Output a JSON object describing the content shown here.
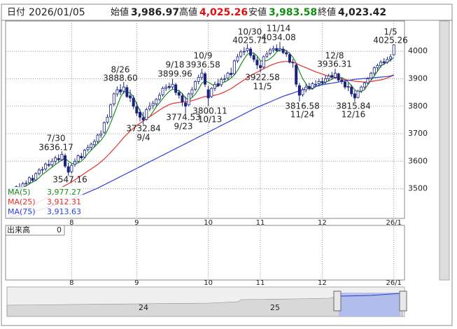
{
  "header": {
    "date_label": "日付",
    "date": "2026/01/05",
    "open_label": "始値",
    "open": "3,986.97",
    "high_label": "高値",
    "high": "4,025.26",
    "low_label": "安値",
    "low": "3,983.58",
    "close_label": "終値",
    "close": "4,023.42"
  },
  "chart_data": {
    "type": "candlestick",
    "up_color": "#ffffff",
    "down_color": "#1a237e",
    "edge_color": "#1a237e",
    "ylim": [
      3392,
      4110
    ],
    "yticks": [
      3500,
      3600,
      3700,
      3800,
      3900,
      4000
    ],
    "grid": true,
    "categories": [
      null,
      null,
      null,
      null,
      null,
      null,
      null,
      null,
      null,
      null,
      null,
      null,
      null,
      null,
      null,
      null,
      null,
      null,
      null,
      "8",
      null,
      null,
      null,
      null,
      null,
      null,
      null,
      null,
      null,
      null,
      null,
      null,
      null,
      null,
      null,
      null,
      null,
      null,
      null,
      "9",
      null,
      null,
      null,
      null,
      null,
      null,
      null,
      null,
      null,
      null,
      null,
      null,
      null,
      null,
      null,
      null,
      null,
      null,
      null,
      null,
      null,
      "10",
      null,
      null,
      null,
      null,
      null,
      null,
      null,
      null,
      null,
      null,
      null,
      null,
      null,
      null,
      null,
      "11",
      null,
      null,
      null,
      null,
      null,
      null,
      null,
      null,
      null,
      null,
      null,
      null,
      null,
      null,
      null,
      null,
      null,
      null,
      "12",
      null,
      null,
      null,
      null,
      null,
      null,
      null,
      null,
      null,
      null,
      null,
      null,
      null,
      null,
      null,
      null,
      null,
      null,
      null,
      null,
      null,
      "26/1"
    ],
    "ohlc": [
      [
        3480,
        3500,
        3470,
        3490
      ],
      [
        3492,
        3505,
        3485,
        3500
      ],
      [
        3498,
        3512,
        3490,
        3508
      ],
      [
        3506,
        3520,
        3498,
        3503
      ],
      [
        3505,
        3525,
        3500,
        3518
      ],
      [
        3518,
        3530,
        3510,
        3520
      ],
      [
        3522,
        3545,
        3515,
        3540
      ],
      [
        3538,
        3550,
        3525,
        3530
      ],
      [
        3532,
        3560,
        3528,
        3555
      ],
      [
        3555,
        3575,
        3548,
        3568
      ],
      [
        3568,
        3580,
        3555,
        3570
      ],
      [
        3572,
        3595,
        3565,
        3590
      ],
      [
        3588,
        3605,
        3578,
        3585
      ],
      [
        3587,
        3610,
        3580,
        3600
      ],
      [
        3600,
        3620,
        3590,
        3612
      ],
      [
        3610,
        3625,
        3598,
        3605
      ],
      [
        3606,
        3636.17,
        3600,
        3625
      ],
      [
        3620,
        3628,
        3575,
        3582
      ],
      [
        3580,
        3595,
        3547.16,
        3560
      ],
      [
        3562,
        3590,
        3555,
        3585
      ],
      [
        3588,
        3610,
        3580,
        3600
      ],
      [
        3600,
        3625,
        3595,
        3620
      ],
      [
        3618,
        3630,
        3605,
        3612
      ],
      [
        3615,
        3645,
        3610,
        3640
      ],
      [
        3642,
        3660,
        3635,
        3650
      ],
      [
        3650,
        3668,
        3640,
        3662
      ],
      [
        3660,
        3680,
        3652,
        3672
      ],
      [
        3672,
        3700,
        3665,
        3695
      ],
      [
        3695,
        3712,
        3685,
        3700
      ],
      [
        3705,
        3745,
        3700,
        3740
      ],
      [
        3742,
        3770,
        3735,
        3760
      ],
      [
        3762,
        3810,
        3755,
        3805
      ],
      [
        3808,
        3850,
        3800,
        3845
      ],
      [
        3845,
        3872,
        3835,
        3860
      ],
      [
        3860,
        3880,
        3840,
        3852
      ],
      [
        3855,
        3888.6,
        3845,
        3870
      ],
      [
        3868,
        3878,
        3830,
        3835
      ],
      [
        3838,
        3860,
        3815,
        3830
      ],
      [
        3830,
        3840,
        3790,
        3800
      ],
      [
        3798,
        3815,
        3765,
        3775
      ],
      [
        3778,
        3790,
        3745,
        3760
      ],
      [
        3758,
        3780,
        3732.84,
        3750
      ],
      [
        3752,
        3795,
        3748,
        3788
      ],
      [
        3790,
        3815,
        3782,
        3800
      ],
      [
        3802,
        3820,
        3790,
        3810
      ],
      [
        3808,
        3830,
        3800,
        3825
      ],
      [
        3825,
        3850,
        3818,
        3840
      ],
      [
        3842,
        3872,
        3835,
        3865
      ],
      [
        3865,
        3880,
        3855,
        3870
      ],
      [
        3872,
        3885,
        3860,
        3868
      ],
      [
        3870,
        3899.96,
        3862,
        3880
      ],
      [
        3878,
        3885,
        3840,
        3850
      ],
      [
        3850,
        3860,
        3828,
        3840
      ],
      [
        3838,
        3848,
        3800,
        3815
      ],
      [
        3812,
        3835,
        3774.53,
        3800
      ],
      [
        3805,
        3850,
        3800,
        3845
      ],
      [
        3845,
        3870,
        3835,
        3860
      ],
      [
        3862,
        3895,
        3855,
        3890
      ],
      [
        3890,
        3915,
        3880,
        3905
      ],
      [
        3905,
        3936.58,
        3895,
        3920
      ],
      [
        3918,
        3925,
        3870,
        3880
      ],
      [
        3860,
        3875,
        3800.11,
        3830
      ],
      [
        3835,
        3870,
        3830,
        3865
      ],
      [
        3865,
        3890,
        3855,
        3880
      ],
      [
        3882,
        3900,
        3870,
        3875
      ],
      [
        3878,
        3905,
        3870,
        3898
      ],
      [
        3898,
        3915,
        3888,
        3900
      ],
      [
        3902,
        3925,
        3895,
        3920
      ],
      [
        3920,
        3940,
        3905,
        3915
      ],
      [
        3918,
        3970,
        3915,
        3965
      ],
      [
        3965,
        3990,
        3958,
        3980
      ],
      [
        3982,
        4005,
        3975,
        3998
      ],
      [
        3998,
        4015,
        3985,
        4000
      ],
      [
        4002,
        4025.71,
        3995,
        4010
      ],
      [
        4008,
        4015,
        3975,
        3985
      ],
      [
        3985,
        3995,
        3960,
        3970
      ],
      [
        3968,
        3980,
        3935,
        3950
      ],
      [
        3948,
        3965,
        3922.58,
        3940
      ],
      [
        3942,
        3985,
        3938,
        3980
      ],
      [
        3982,
        4000,
        3975,
        3990
      ],
      [
        3992,
        4012,
        3985,
        4005
      ],
      [
        4005,
        4020,
        3995,
        4010
      ],
      [
        4010,
        4025,
        3998,
        4002
      ],
      [
        4005,
        4034.08,
        3998,
        4010
      ],
      [
        4008,
        4018,
        3990,
        3995
      ],
      [
        3995,
        4005,
        3980,
        3990
      ],
      [
        3988,
        3995,
        3955,
        3960
      ],
      [
        3960,
        3972,
        3940,
        3958
      ],
      [
        3950,
        3955,
        3870,
        3880
      ],
      [
        3875,
        3885,
        3816.58,
        3840
      ],
      [
        3842,
        3868,
        3835,
        3860
      ],
      [
        3860,
        3880,
        3850,
        3870
      ],
      [
        3872,
        3885,
        3858,
        3865
      ],
      [
        3865,
        3888,
        3860,
        3882
      ],
      [
        3880,
        3895,
        3870,
        3880
      ],
      [
        3882,
        3900,
        3872,
        3890
      ],
      [
        3890,
        3905,
        3878,
        3885
      ],
      [
        3888,
        3912,
        3880,
        3900
      ],
      [
        3900,
        3918,
        3890,
        3910
      ],
      [
        3912,
        3925,
        3898,
        3905
      ],
      [
        3905,
        3936.31,
        3900,
        3920
      ],
      [
        3918,
        3922,
        3888,
        3895
      ],
      [
        3895,
        3905,
        3880,
        3890
      ],
      [
        3888,
        3895,
        3862,
        3870
      ],
      [
        3870,
        3885,
        3855,
        3872
      ],
      [
        3870,
        3878,
        3835,
        3845
      ],
      [
        3845,
        3858,
        3815.84,
        3830
      ],
      [
        3832,
        3860,
        3828,
        3855
      ],
      [
        3855,
        3875,
        3848,
        3870
      ],
      [
        3870,
        3890,
        3862,
        3885
      ],
      [
        3885,
        3905,
        3878,
        3900
      ],
      [
        3902,
        3925,
        3895,
        3920
      ],
      [
        3920,
        3945,
        3912,
        3940
      ],
      [
        3940,
        3955,
        3928,
        3948
      ],
      [
        3948,
        3968,
        3940,
        3960
      ],
      [
        3962,
        3975,
        3950,
        3958
      ],
      [
        3960,
        3980,
        3955,
        3970
      ],
      [
        3972,
        3990,
        3962,
        3980
      ],
      [
        3986.97,
        4025.26,
        3983.58,
        4023.42
      ]
    ],
    "series": [
      {
        "name": "MA(5)",
        "color": "#1e8c1e",
        "value_label": "3,977.27",
        "values": [
          3470,
          3480,
          3490,
          3498,
          3504,
          3510,
          3518,
          3524,
          3530,
          3540,
          3552,
          3560,
          3570,
          3578,
          3588,
          3596,
          3604,
          3610,
          3600,
          3592,
          3590,
          3594,
          3600,
          3612,
          3628,
          3640,
          3652,
          3664,
          3676,
          3692,
          3712,
          3740,
          3770,
          3802,
          3832,
          3852,
          3852,
          3848,
          3834,
          3808,
          3784,
          3762,
          3756,
          3762,
          3780,
          3798,
          3812,
          3828,
          3842,
          3854,
          3862,
          3860,
          3856,
          3846,
          3830,
          3822,
          3832,
          3844,
          3862,
          3884,
          3892,
          3887,
          3880,
          3872,
          3872,
          3884,
          3888,
          3894,
          3902,
          3914,
          3930,
          3952,
          3972,
          3989,
          3995,
          3993,
          3983,
          3965,
          3965,
          3966,
          3973,
          3983,
          3997,
          4005,
          4006,
          4002,
          3992,
          3978,
          3957,
          3926,
          3900,
          3882,
          3863,
          3863,
          3871,
          3877,
          3880,
          3887,
          3893,
          3898,
          3904,
          3906,
          3904,
          3898,
          3888,
          3874,
          3860,
          3852,
          3854,
          3860,
          3878,
          3894,
          3910,
          3928,
          3946,
          3954,
          3960,
          3968,
          3977.27
        ]
      },
      {
        "name": "MA(25)",
        "color": "#e8302a",
        "value_label": "3,912.31",
        "values": [
          3400,
          3405,
          3410,
          3416,
          3422,
          3428,
          3434,
          3440,
          3446,
          3452,
          3458,
          3465,
          3472,
          3480,
          3488,
          3496,
          3504,
          3512,
          3518,
          3525,
          3532,
          3540,
          3548,
          3556,
          3564,
          3572,
          3580,
          3588,
          3598,
          3608,
          3620,
          3632,
          3645,
          3658,
          3672,
          3686,
          3698,
          3710,
          3720,
          3730,
          3738,
          3746,
          3754,
          3762,
          3770,
          3778,
          3786,
          3794,
          3800,
          3806,
          3810,
          3812,
          3814,
          3815,
          3816,
          3818,
          3820,
          3824,
          3828,
          3832,
          3835,
          3836,
          3838,
          3840,
          3843,
          3847,
          3852,
          3858,
          3864,
          3872,
          3880,
          3888,
          3896,
          3904,
          3912,
          3918,
          3924,
          3930,
          3936,
          3942,
          3948,
          3953,
          3957,
          3960,
          3962,
          3963,
          3962,
          3960,
          3956,
          3950,
          3945,
          3940,
          3935,
          3930,
          3925,
          3921,
          3917,
          3913,
          3910,
          3907,
          3904,
          3901,
          3899,
          3897,
          3895,
          3893,
          3891,
          3890,
          3889,
          3888,
          3889,
          3890,
          3892,
          3894,
          3896,
          3899,
          3903,
          3908,
          3912.31
        ]
      },
      {
        "name": "MA(75)",
        "color": "#2b3fe0",
        "value_label": "3,913.63",
        "values": [
          3395,
          3398,
          3401,
          3404,
          3407,
          3410,
          3413,
          3416,
          3419,
          3422,
          3426,
          3430,
          3434,
          3438,
          3442,
          3446,
          3450,
          3454,
          3458,
          3462,
          3467,
          3472,
          3477,
          3482,
          3487,
          3492,
          3497,
          3502,
          3508,
          3514,
          3520,
          3526,
          3532,
          3538,
          3544,
          3550,
          3556,
          3562,
          3568,
          3574,
          3580,
          3586,
          3592,
          3598,
          3604,
          3610,
          3616,
          3622,
          3628,
          3634,
          3640,
          3646,
          3652,
          3658,
          3664,
          3670,
          3676,
          3682,
          3688,
          3694,
          3700,
          3706,
          3712,
          3718,
          3724,
          3730,
          3736,
          3742,
          3748,
          3754,
          3760,
          3766,
          3772,
          3778,
          3784,
          3790,
          3796,
          3801,
          3806,
          3811,
          3816,
          3821,
          3826,
          3831,
          3836,
          3840,
          3844,
          3848,
          3852,
          3856,
          3860,
          3863,
          3866,
          3869,
          3872,
          3875,
          3878,
          3880,
          3882,
          3884,
          3886,
          3888,
          3890,
          3892,
          3894,
          3896,
          3898,
          3899,
          3900,
          3901,
          3902,
          3903,
          3904,
          3905,
          3906,
          3907,
          3908,
          3910,
          3913.63
        ]
      }
    ],
    "annotations": [
      {
        "date": "7/30",
        "value": "3636.17"
      },
      {
        "value": "3547.16"
      },
      {
        "date": "8/26",
        "value": "3888.60"
      },
      {
        "date": "9/4",
        "value": "3732.84"
      },
      {
        "date": "9/18",
        "value": "3899.96"
      },
      {
        "date": "9/23",
        "value": "3774.53"
      },
      {
        "date": "10/9",
        "value": "3936.58"
      },
      {
        "date": "10/13",
        "value": "3800.11"
      },
      {
        "date": "10/30",
        "value": "4025.71"
      },
      {
        "date": "11/5",
        "value": "3922.58"
      },
      {
        "date": "11/14",
        "value": "4034.08"
      },
      {
        "date": "11/24",
        "value": "3816.58"
      },
      {
        "date": "12/8",
        "value": "3936.31"
      },
      {
        "date": "12/16",
        "value": "3815.84"
      },
      {
        "date": "1/5",
        "value": "4025.26"
      }
    ]
  },
  "volume": {
    "label": "出来高",
    "value": "0"
  },
  "navigator": {
    "labels": [
      "24",
      "25"
    ]
  }
}
